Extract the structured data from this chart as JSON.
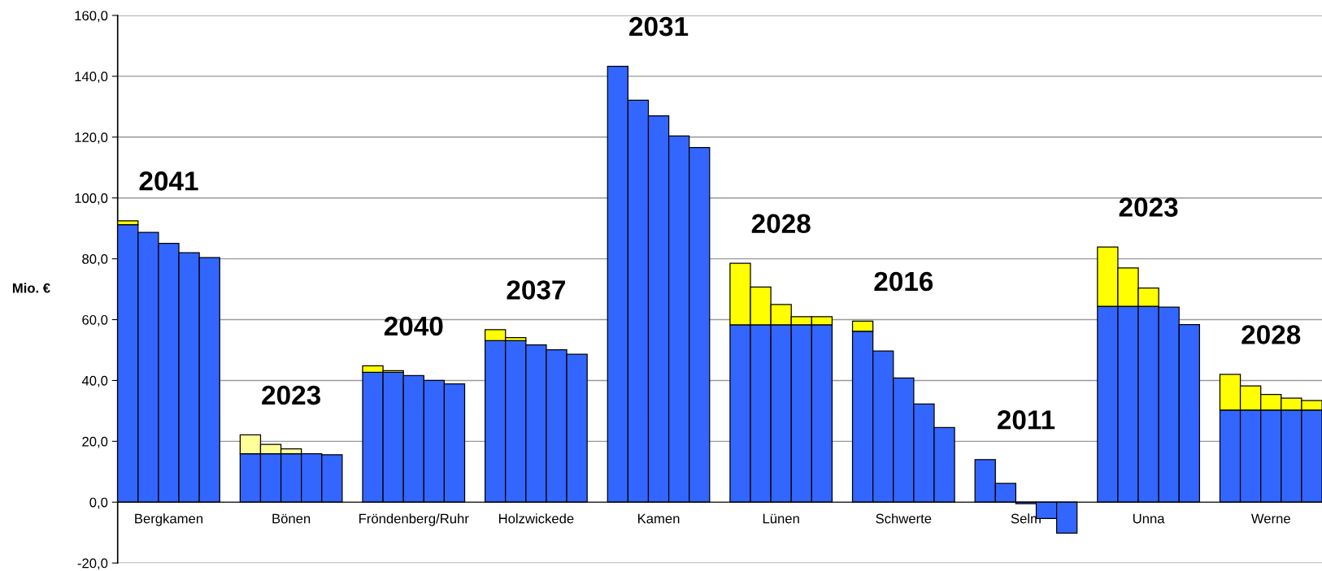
{
  "chart_data": {
    "type": "bar",
    "stacked": true,
    "ylabel": "Mio. €",
    "categories": [
      null,
      null,
      "Bergkamen",
      null,
      null,
      null,
      null,
      null,
      "Bönen",
      null,
      null,
      null,
      null,
      null,
      "Fröndenberg/Ruhr",
      null,
      null,
      null,
      null,
      null,
      "Holzwickede",
      null,
      null,
      null,
      null,
      null,
      "Kamen",
      null,
      null,
      null,
      null,
      null,
      "Lünen",
      null,
      null,
      null,
      null,
      null,
      "Schwerte",
      null,
      null,
      null,
      null,
      null,
      "Selm",
      null,
      null,
      null,
      null,
      null,
      "Unna",
      null,
      null,
      null,
      null,
      null,
      "Werne",
      null,
      null
    ],
    "series": [
      {
        "color": "#3366ff",
        "values": [
          91.2,
          88.7,
          85.1,
          82.0,
          80.4,
          null,
          15.9,
          15.9,
          15.9,
          15.9,
          15.6,
          null,
          42.7,
          42.7,
          41.6,
          40.0,
          38.9,
          null,
          53.1,
          53.1,
          51.7,
          50.1,
          48.6,
          null,
          143.3,
          132.1,
          127.0,
          120.4,
          116.6,
          null,
          58.3,
          58.3,
          58.3,
          58.3,
          58.3,
          null,
          56.2,
          49.7,
          40.8,
          32.3,
          24.5,
          null,
          14.0,
          6.2,
          -0.5,
          -5.4,
          -10.2,
          null,
          64.4,
          64.4,
          64.4,
          64.1,
          58.4,
          null,
          30.3,
          30.3,
          30.3,
          30.3,
          30.3
        ]
      },
      {
        "colors": [
          "#ffff00",
          "#ffff00",
          "#ffff00",
          "#ffff00",
          "#ffff00",
          "#ffff00",
          "#ffff99",
          "#ffff99",
          "#ffff99",
          "#ffff99",
          "#ffff99",
          "#ffff00",
          "#ffff00",
          "#ffff00",
          "#ffff00",
          "#ffff00",
          "#ffff00",
          "#ffff00",
          "#ffff00",
          "#ffff00",
          "#ffff00",
          "#ffff00",
          "#ffff00",
          "#ffff00",
          "#ffff00",
          "#ffff00",
          "#ffff00",
          "#ffff00",
          "#ffff00",
          "#ffff00",
          "#ffff00",
          "#ffff00",
          "#ffff00",
          "#ffff00",
          "#ffff00",
          "#ffff00",
          "#ffff00",
          "#ffff00",
          "#ffff00",
          "#ffff00",
          "#ffff00",
          "#ffff00",
          "#ffff00",
          "#ffff00",
          "#ffff00",
          "#ffff00",
          "#ffff00",
          "#ffff00",
          "#ffff00",
          "#ffff00",
          "#ffff00",
          "#ffff00",
          "#ffff00",
          "#ffff00",
          "#ffff00",
          "#ffff00",
          "#ffff00",
          "#ffff00",
          "#ffff00"
        ],
        "values": [
          1.3,
          null,
          null,
          null,
          null,
          null,
          6.2,
          3.1,
          1.6,
          null,
          null,
          null,
          2.1,
          0.5,
          null,
          null,
          null,
          null,
          3.6,
          1.0,
          null,
          null,
          null,
          null,
          null,
          null,
          null,
          null,
          null,
          null,
          20.2,
          12.4,
          6.7,
          2.7,
          2.7,
          null,
          3.3,
          null,
          null,
          null,
          null,
          null,
          null,
          null,
          null,
          null,
          null,
          null,
          19.5,
          12.6,
          6.0,
          null,
          null,
          null,
          11.7,
          7.9,
          5.1,
          3.9,
          3.1
        ]
      }
    ],
    "ylim": [
      -20,
      160
    ],
    "yticks": [
      {
        "value": -20,
        "label": "-20,0"
      },
      {
        "value": 0,
        "label": "0,0"
      },
      {
        "value": 20,
        "label": "20,0"
      },
      {
        "value": 40,
        "label": "40,0"
      },
      {
        "value": 60,
        "label": "60,0"
      },
      {
        "value": 80,
        "label": "80,0"
      },
      {
        "value": 100,
        "label": "100,0"
      },
      {
        "value": 120,
        "label": "120,0"
      },
      {
        "value": 140,
        "label": "140,0"
      },
      {
        "value": 160,
        "label": "160,0"
      }
    ],
    "grid": "y",
    "annotations": [
      "2041",
      "2023",
      "2040",
      "2037",
      "2031",
      "2028",
      "2016",
      "2011",
      "2023",
      "2028"
    ]
  }
}
